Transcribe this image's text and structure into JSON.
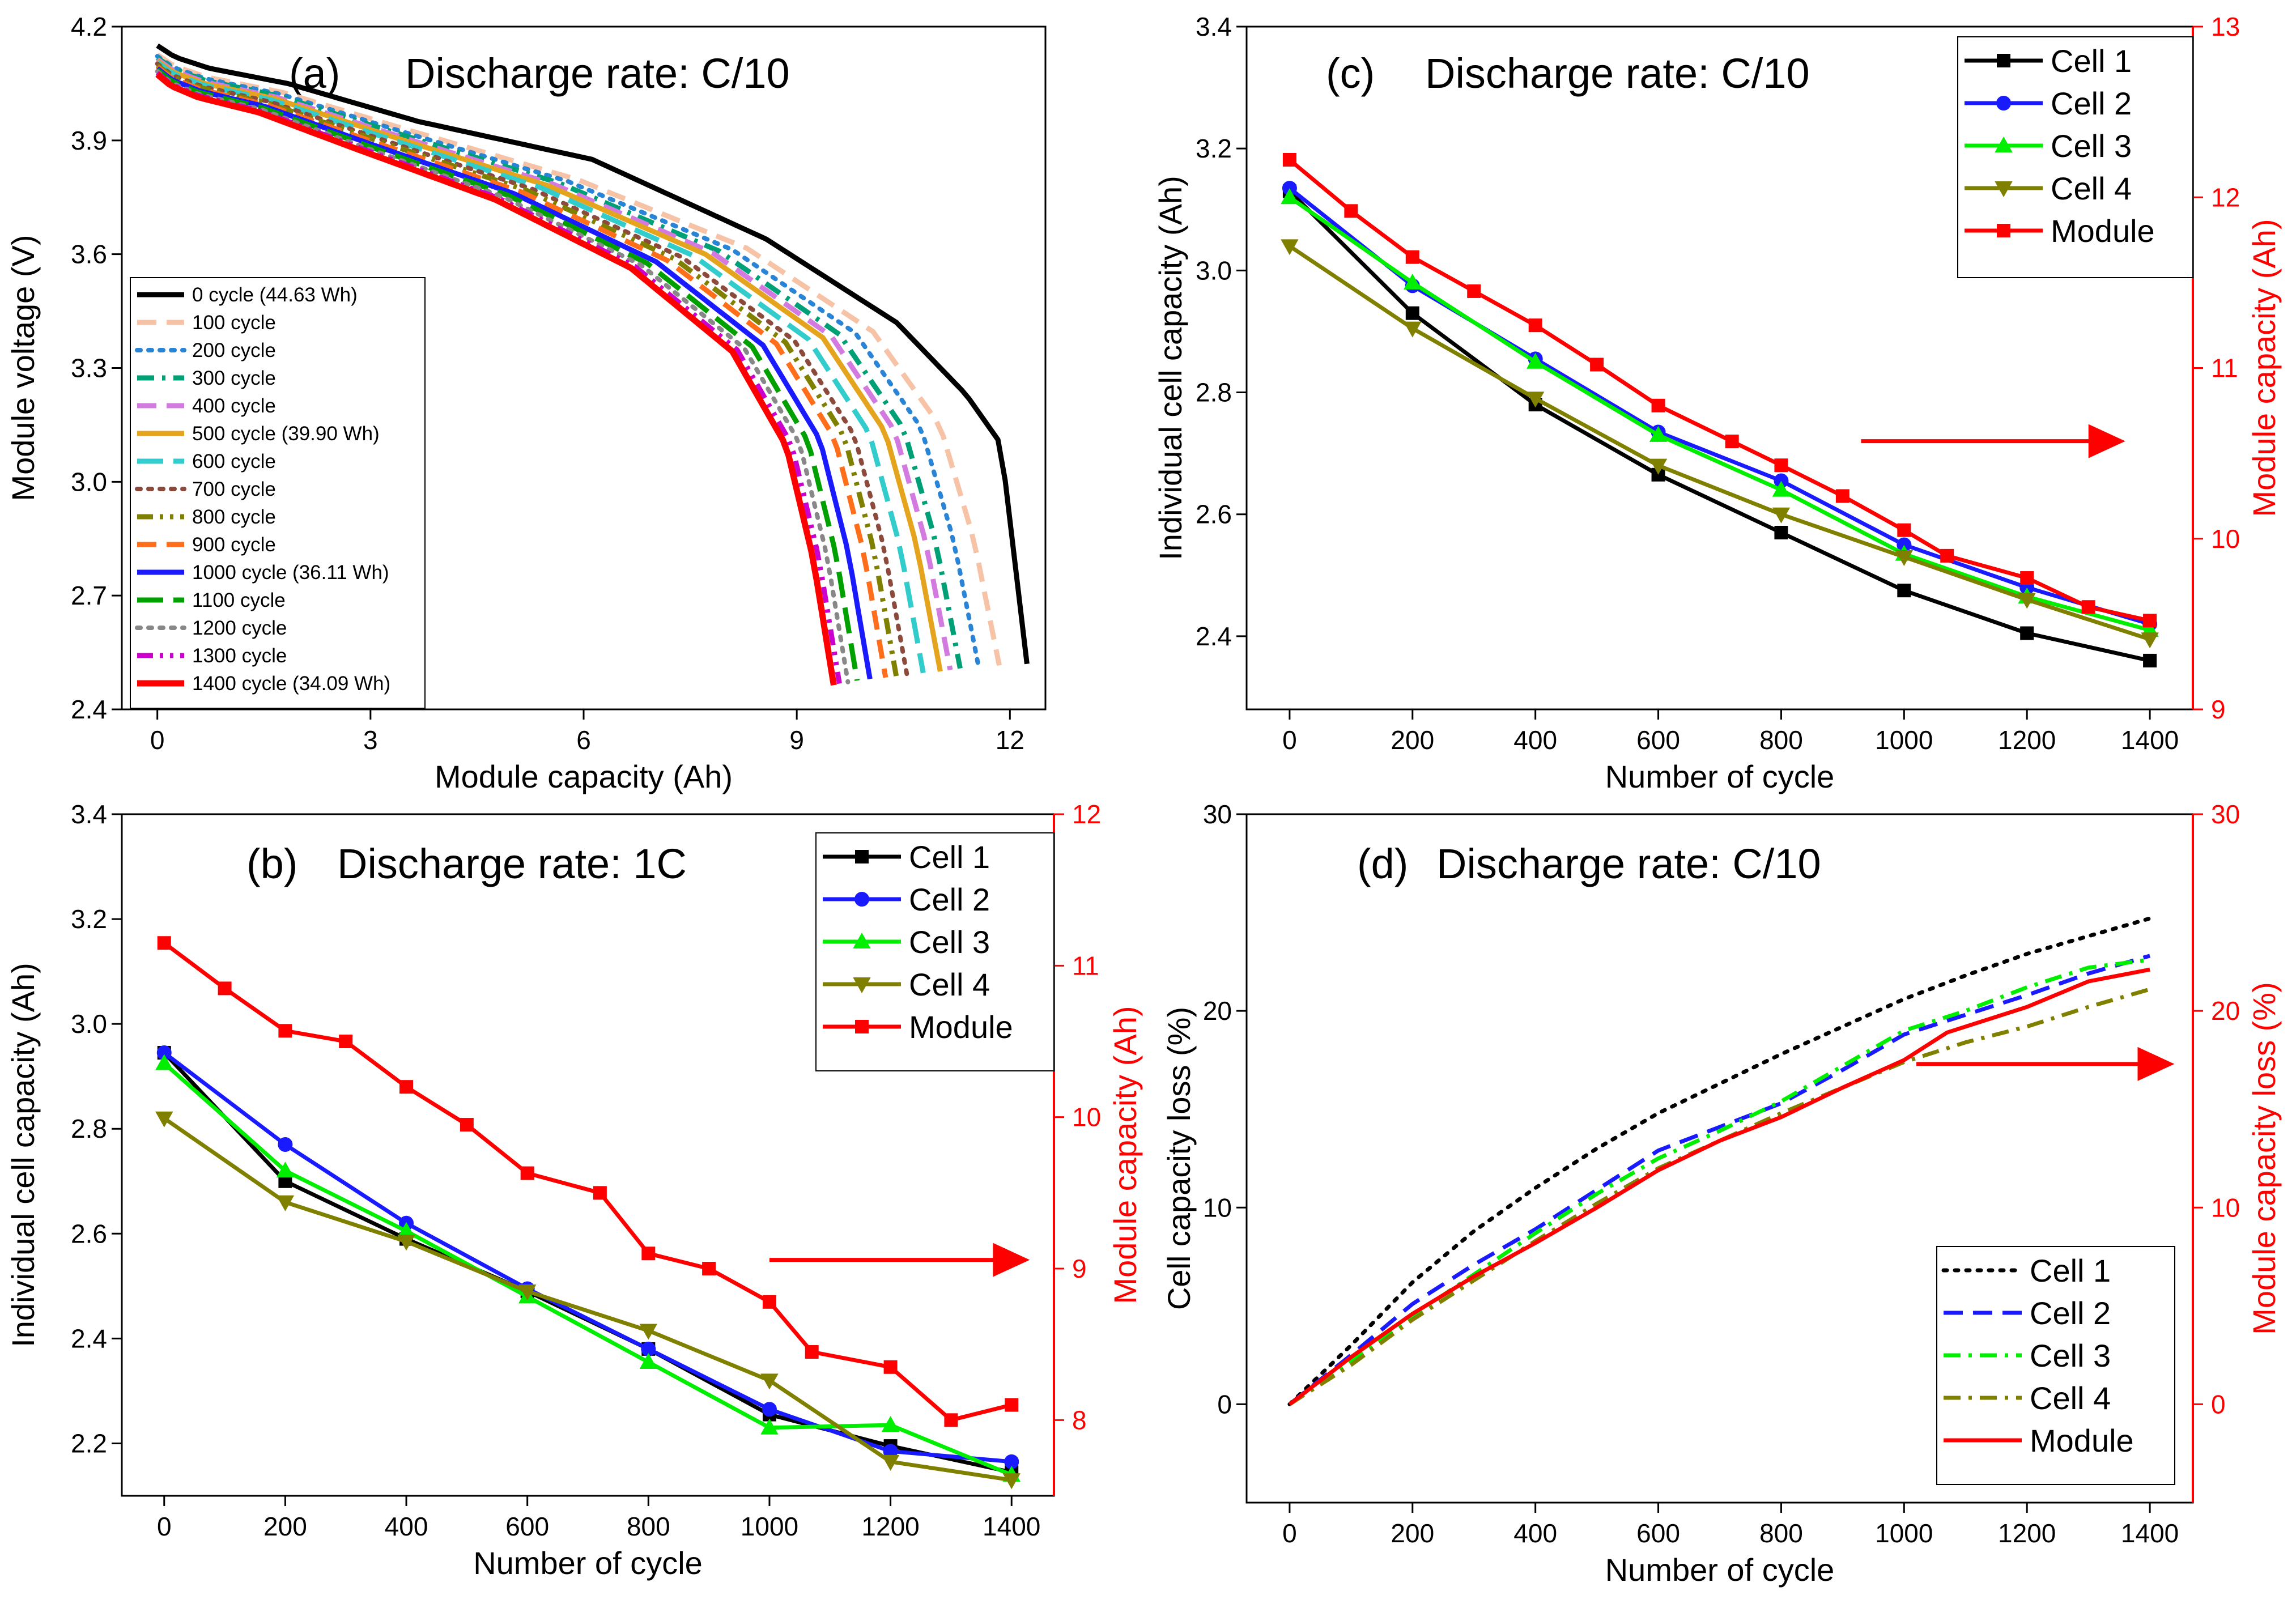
{
  "colors": {
    "cell1": "#000000",
    "cell2": "#1a1aff",
    "cell3": "#00ee00",
    "cell4": "#808000",
    "module": "#ff0000",
    "axis_black": "#000000",
    "axis_red": "#ff0000"
  },
  "chart_data": [
    {
      "id": "a",
      "type": "line",
      "label": "(a)",
      "title": "Discharge rate: C/10",
      "xlabel": "Module capacity (Ah)",
      "ylabel": "Module voltage (V)",
      "xlim": [
        -0.5,
        12.5
      ],
      "ylim": [
        2.4,
        4.2
      ],
      "xticks": [
        0,
        3,
        6,
        9,
        12
      ],
      "yticks": [
        2.4,
        2.7,
        3.0,
        3.3,
        3.6,
        3.9,
        4.2
      ],
      "xtick_labels": [
        "0",
        "3",
        "6",
        "9",
        "12"
      ],
      "ytick_labels": [
        "2.4",
        "2.7",
        "3.0",
        "3.3",
        "3.6",
        "3.9",
        "4.2"
      ],
      "curve_shape": {
        "cap": [
          0,
          0.02,
          0.06,
          0.15,
          0.3,
          0.5,
          0.7,
          0.85,
          0.93,
          0.97,
          1.0
        ],
        "base": [
          4.13,
          4.1,
          4.07,
          4.03,
          3.93,
          3.8,
          3.62,
          3.4,
          3.15,
          2.85,
          2.52
        ],
        "cycle0_boost": [
          0.02,
          0.02,
          0.02,
          0.02,
          0.02,
          0.05,
          0.02,
          0.02,
          0.08,
          0.25,
          0.0
        ]
      },
      "series": [
        {
          "name": "0 cycle (44.63 Wh)",
          "capacity": 12.24,
          "color": "#000000",
          "dash": "solid",
          "width": 9
        },
        {
          "name": "100 cycle",
          "capacity": 11.85,
          "color": "#f7c3a6",
          "dash": "dash",
          "width": 9
        },
        {
          "name": "200 cycle",
          "capacity": 11.56,
          "color": "#2a84d6",
          "dash": "dot",
          "width": 8
        },
        {
          "name": "300 cycle",
          "capacity": 11.3,
          "color": "#00a077",
          "dash": "dashdot",
          "width": 9
        },
        {
          "name": "400 cycle",
          "capacity": 11.16,
          "color": "#d27ae0",
          "dash": "dash",
          "width": 9
        },
        {
          "name": "500 cycle (39.90 Wh)",
          "capacity": 11.02,
          "color": "#e4a41e",
          "dash": "solid",
          "width": 9
        },
        {
          "name": "600 cycle",
          "capacity": 10.78,
          "color": "#33cccc",
          "dash": "dashlong",
          "width": 9
        },
        {
          "name": "700 cycle",
          "capacity": 10.55,
          "color": "#8b4a3c",
          "dash": "dot",
          "width": 8
        },
        {
          "name": "800 cycle",
          "capacity": 10.4,
          "color": "#808000",
          "dash": "dashdotdot",
          "width": 9
        },
        {
          "name": "900 cycle",
          "capacity": 10.25,
          "color": "#ff6e1a",
          "dash": "dash",
          "width": 9
        },
        {
          "name": "1000 cycle (36.11 Wh)",
          "capacity": 10.03,
          "color": "#1a1aff",
          "dash": "solid",
          "width": 9
        },
        {
          "name": "1100 cycle",
          "capacity": 9.85,
          "color": "#00a000",
          "dash": "dashlong",
          "width": 9
        },
        {
          "name": "1200 cycle",
          "capacity": 9.72,
          "color": "#888888",
          "dash": "dot",
          "width": 8
        },
        {
          "name": "1300 cycle",
          "capacity": 9.6,
          "color": "#cc00cc",
          "dash": "dashdotdot",
          "width": 9
        },
        {
          "name": "1400 cycle (34.09 Wh)",
          "capacity": 9.52,
          "color": "#ff0000",
          "dash": "solid",
          "width": 11
        }
      ]
    },
    {
      "id": "b",
      "type": "line",
      "label": "(b)",
      "title": "Discharge rate: 1C",
      "xlabel": "Number of cycle",
      "ylabel": "Individual cell capacity (Ah)",
      "ylabel_right": "Module capacity (Ah)",
      "xlim": [
        -70,
        1470
      ],
      "ylim": [
        2.1,
        3.4
      ],
      "ylim_right": [
        7.5,
        12.0
      ],
      "xticks": [
        0,
        200,
        400,
        600,
        800,
        1000,
        1200,
        1400
      ],
      "yticks": [
        2.2,
        2.4,
        2.6,
        2.8,
        3.0,
        3.2,
        3.4
      ],
      "yticks_right": [
        8,
        9,
        10,
        11,
        12
      ],
      "xtick_labels": [
        "0",
        "200",
        "400",
        "600",
        "800",
        "1000",
        "1200",
        "1400"
      ],
      "ytick_labels": [
        "2.2",
        "2.4",
        "2.6",
        "2.8",
        "3.0",
        "3.2",
        "3.4"
      ],
      "ytick_labels_right": [
        "8",
        "9",
        "10",
        "11",
        "12"
      ],
      "series": [
        {
          "name": "Cell 1",
          "axis": "left",
          "marker": "square",
          "color": "#000000",
          "x": [
            0,
            200,
            400,
            600,
            800,
            1000,
            1200,
            1400
          ],
          "y": [
            2.945,
            2.7,
            2.59,
            2.49,
            2.38,
            2.255,
            2.195,
            2.145
          ]
        },
        {
          "name": "Cell 2",
          "axis": "left",
          "marker": "circle",
          "color": "#1a1aff",
          "x": [
            0,
            200,
            400,
            600,
            800,
            1000,
            1200,
            1400
          ],
          "y": [
            2.945,
            2.77,
            2.62,
            2.495,
            2.38,
            2.265,
            2.185,
            2.165
          ]
        },
        {
          "name": "Cell 3",
          "axis": "left",
          "marker": "triangle-up",
          "color": "#00ee00",
          "x": [
            0,
            200,
            400,
            600,
            800,
            1000,
            1200,
            1400
          ],
          "y": [
            2.925,
            2.72,
            2.605,
            2.48,
            2.355,
            2.23,
            2.235,
            2.14
          ]
        },
        {
          "name": "Cell 4",
          "axis": "left",
          "marker": "triangle-down",
          "color": "#808000",
          "x": [
            0,
            200,
            400,
            600,
            800,
            1000,
            1200,
            1400
          ],
          "y": [
            2.82,
            2.66,
            2.585,
            2.49,
            2.415,
            2.32,
            2.165,
            2.13
          ]
        },
        {
          "name": "Module",
          "axis": "right",
          "marker": "square",
          "color": "#ff0000",
          "x": [
            0,
            100,
            200,
            300,
            400,
            500,
            600,
            720,
            800,
            900,
            1000,
            1070,
            1200,
            1300,
            1400
          ],
          "y": [
            11.15,
            10.85,
            10.57,
            10.5,
            10.2,
            9.95,
            9.63,
            9.5,
            9.1,
            9.0,
            8.78,
            8.45,
            8.35,
            8.0,
            8.1
          ]
        }
      ],
      "arrow": {
        "direction": "right",
        "from": [
          1000,
          2.55
        ],
        "to": [
          1430,
          2.55
        ]
      }
    },
    {
      "id": "c",
      "type": "line",
      "label": "(c)",
      "title": "Discharge rate: C/10",
      "xlabel": "Number of cycle",
      "ylabel": "Individual cell capacity (Ah)",
      "ylabel_right": "Module capacity (Ah)",
      "xlim": [
        -70,
        1470
      ],
      "ylim": [
        2.28,
        3.4
      ],
      "ylim_right": [
        9.0,
        13.0
      ],
      "xticks": [
        0,
        200,
        400,
        600,
        800,
        1000,
        1200,
        1400
      ],
      "yticks": [
        2.4,
        2.6,
        2.8,
        3.0,
        3.2,
        3.4
      ],
      "yticks_right": [
        9,
        10,
        11,
        12,
        13
      ],
      "xtick_labels": [
        "0",
        "200",
        "400",
        "600",
        "800",
        "1000",
        "1200",
        "1400"
      ],
      "ytick_labels": [
        "2.4",
        "2.6",
        "2.8",
        "3.0",
        "3.2",
        "3.4"
      ],
      "ytick_labels_right": [
        "9",
        "10",
        "11",
        "12",
        "13"
      ],
      "series": [
        {
          "name": "Cell 1",
          "axis": "left",
          "marker": "square",
          "color": "#000000",
          "x": [
            0,
            200,
            400,
            600,
            800,
            1000,
            1200,
            1400
          ],
          "y": [
            3.13,
            2.93,
            2.78,
            2.665,
            2.57,
            2.475,
            2.405,
            2.36
          ]
        },
        {
          "name": "Cell 2",
          "axis": "left",
          "marker": "circle",
          "color": "#1a1aff",
          "x": [
            0,
            200,
            400,
            600,
            800,
            1000,
            1200,
            1400
          ],
          "y": [
            3.135,
            2.975,
            2.855,
            2.735,
            2.655,
            2.55,
            2.48,
            2.42
          ]
        },
        {
          "name": "Cell 3",
          "axis": "left",
          "marker": "triangle-up",
          "color": "#00ee00",
          "x": [
            0,
            200,
            400,
            600,
            800,
            1000,
            1200,
            1400
          ],
          "y": [
            3.12,
            2.98,
            2.85,
            2.73,
            2.64,
            2.535,
            2.465,
            2.41
          ]
        },
        {
          "name": "Cell 4",
          "axis": "left",
          "marker": "triangle-down",
          "color": "#808000",
          "x": [
            0,
            200,
            400,
            600,
            800,
            1000,
            1200,
            1400
          ],
          "y": [
            3.04,
            2.905,
            2.79,
            2.68,
            2.6,
            2.53,
            2.46,
            2.395
          ]
        },
        {
          "name": "Module",
          "axis": "right",
          "marker": "square",
          "color": "#ff0000",
          "x": [
            0,
            100,
            200,
            300,
            400,
            500,
            600,
            720,
            800,
            900,
            1000,
            1070,
            1200,
            1300,
            1400
          ],
          "y": [
            12.22,
            11.92,
            11.65,
            11.45,
            11.25,
            11.02,
            10.78,
            10.57,
            10.43,
            10.25,
            10.05,
            9.9,
            9.77,
            9.6,
            9.52
          ]
        }
      ],
      "arrow": {
        "direction": "right",
        "from": [
          930,
          2.72
        ],
        "to": [
          1360,
          2.72
        ]
      }
    },
    {
      "id": "d",
      "type": "line",
      "label": "(d)",
      "title": "Discharge rate: C/10",
      "xlabel": "Number of cycle",
      "ylabel": "Cell capacity loss (%)",
      "ylabel_right": "Module capacity loss (%)",
      "xlim": [
        -70,
        1470
      ],
      "ylim": [
        -5,
        30
      ],
      "ylim_right": [
        -5,
        30
      ],
      "xticks": [
        0,
        200,
        400,
        600,
        800,
        1000,
        1200,
        1400
      ],
      "yticks": [
        0,
        10,
        20,
        30
      ],
      "yticks_right": [
        0,
        10,
        20,
        30
      ],
      "xtick_labels": [
        "0",
        "200",
        "400",
        "600",
        "800",
        "1000",
        "1200",
        "1400"
      ],
      "ytick_labels": [
        "0",
        "10",
        "20",
        "30"
      ],
      "ytick_labels_right": [
        "0",
        "10",
        "20",
        "30"
      ],
      "series": [
        {
          "name": "Cell 1",
          "axis": "left",
          "dash": "dot",
          "color": "#000000",
          "x": [
            0,
            100,
            200,
            300,
            400,
            500,
            600,
            700,
            800,
            900,
            1000,
            1100,
            1200,
            1300,
            1400
          ],
          "y": [
            0,
            3.0,
            6.2,
            8.8,
            11.0,
            13.0,
            14.8,
            16.3,
            17.8,
            19.2,
            20.6,
            21.8,
            22.9,
            23.8,
            24.7
          ]
        },
        {
          "name": "Cell 2",
          "axis": "left",
          "dash": "dash",
          "color": "#1a1aff",
          "x": [
            0,
            100,
            200,
            300,
            400,
            500,
            600,
            700,
            800,
            900,
            1000,
            1100,
            1200,
            1300,
            1400
          ],
          "y": [
            0,
            2.5,
            5.1,
            7.1,
            8.9,
            10.9,
            12.9,
            14.1,
            15.3,
            17.0,
            18.8,
            19.8,
            20.8,
            21.9,
            22.8
          ]
        },
        {
          "name": "Cell 3",
          "axis": "left",
          "dash": "dashdot",
          "color": "#00ee00",
          "x": [
            0,
            100,
            200,
            300,
            400,
            500,
            600,
            700,
            800,
            900,
            1000,
            1100,
            1200,
            1300,
            1400
          ],
          "y": [
            0,
            2.2,
            4.5,
            6.6,
            8.7,
            10.7,
            12.5,
            13.9,
            15.4,
            17.2,
            19.0,
            20.0,
            21.2,
            22.2,
            22.6
          ]
        },
        {
          "name": "Cell 4",
          "axis": "left",
          "dash": "dashdot",
          "color": "#808000",
          "x": [
            0,
            100,
            200,
            300,
            400,
            500,
            600,
            700,
            800,
            900,
            1000,
            1100,
            1200,
            1300,
            1400
          ],
          "y": [
            0,
            2.0,
            4.3,
            6.3,
            8.3,
            10.2,
            12.0,
            13.4,
            14.8,
            16.1,
            17.4,
            18.4,
            19.2,
            20.2,
            21.1
          ]
        },
        {
          "name": "Module",
          "axis": "right",
          "dash": "solid",
          "color": "#ff0000",
          "x": [
            0,
            100,
            200,
            300,
            400,
            500,
            600,
            700,
            800,
            900,
            1000,
            1070,
            1200,
            1300,
            1400
          ],
          "y": [
            0,
            2.4,
            4.6,
            6.5,
            8.2,
            10.0,
            11.9,
            13.4,
            14.6,
            16.1,
            17.5,
            18.9,
            20.2,
            21.5,
            22.1
          ]
        }
      ],
      "arrow": {
        "direction": "right",
        "from": [
          1020,
          17.3
        ],
        "to": [
          1440,
          17.3
        ]
      }
    }
  ]
}
